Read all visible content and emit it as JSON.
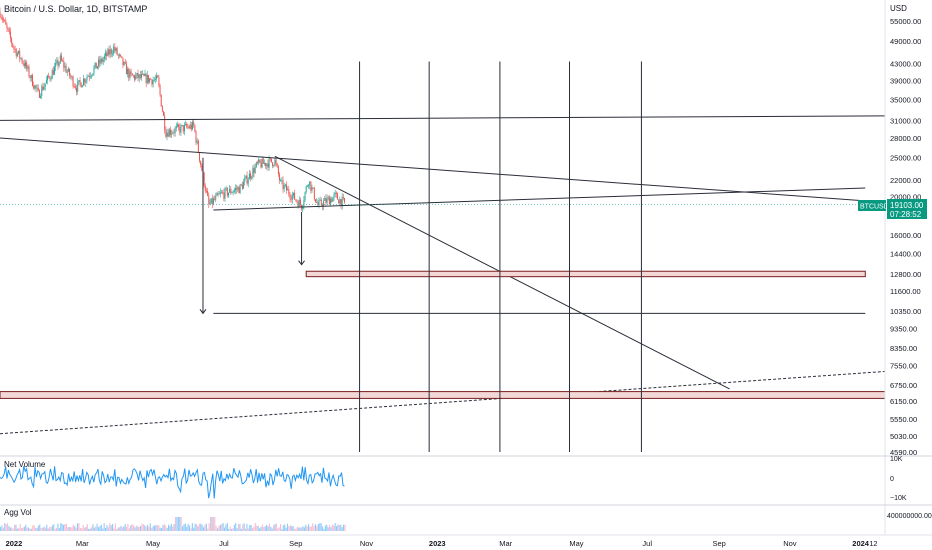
{
  "header": {
    "title": "Bitcoin / U.S. Dollar, 1D, BITSTAMP"
  },
  "price_axis": {
    "currency": "USD",
    "ticks": [
      "55000.00",
      "49000.00",
      "43000.00",
      "39000.00",
      "35000.00",
      "31000.00",
      "28000.00",
      "25000.00",
      "22000.00",
      "20000.00",
      "16000.00",
      "14400.00",
      "12800.00",
      "11600.00",
      "10350.00",
      "9350.00",
      "8350.00",
      "7550.00",
      "6750.00",
      "6150.00",
      "5550.00",
      "5030.00",
      "4590.00"
    ]
  },
  "last_price": {
    "symbol": "BTCUSD",
    "price": "19103.00",
    "countdown": "07:28:52"
  },
  "time_axis": {
    "labels": [
      "2022",
      "Mar",
      "May",
      "Jul",
      "Sep",
      "Nov",
      "2023",
      "Mar",
      "May",
      "Jul",
      "Sep",
      "Nov",
      "2024",
      "12"
    ]
  },
  "panes": {
    "net_volume": {
      "title": "Net Volume",
      "ticks": [
        "10K",
        "0",
        "−10K"
      ]
    },
    "agg_vol": {
      "title": "Agg Vol",
      "ticks": [
        "400000000.00"
      ]
    }
  },
  "colors": {
    "up": "#26a69a",
    "down": "#ef5350",
    "net_volume_line": "#2196f3",
    "last_price_badge": "#089981",
    "zone_fill": "#f3d6d6",
    "zone_border": "#7a1f1f"
  },
  "chart_data": {
    "type": "candlestick",
    "title": "Bitcoin / U.S. Dollar, 1D, BITSTAMP",
    "y_scale": "log",
    "ylim": [
      4590,
      62000
    ],
    "x_range": [
      "2021-12-20",
      "2024-01-22"
    ],
    "last_price": 19103,
    "price_path": [
      [
        "2021-12-20",
        58000
      ],
      [
        "2022-01-01",
        47000
      ],
      [
        "2022-01-10",
        43000
      ],
      [
        "2022-01-22",
        36000
      ],
      [
        "2022-02-10",
        44000
      ],
      [
        "2022-02-24",
        37500
      ],
      [
        "2022-03-28",
        47000
      ],
      [
        "2022-04-11",
        40000
      ],
      [
        "2022-05-05",
        39000
      ],
      [
        "2022-05-12",
        29000
      ],
      [
        "2022-06-05",
        30000
      ],
      [
        "2022-06-13",
        22500
      ],
      [
        "2022-06-18",
        19000
      ],
      [
        "2022-06-28",
        20200
      ],
      [
        "2022-07-15",
        21000
      ],
      [
        "2022-07-30",
        24000
      ],
      [
        "2022-08-14",
        24500
      ],
      [
        "2022-08-19",
        21500
      ],
      [
        "2022-09-06",
        19000
      ],
      [
        "2022-09-12",
        22000
      ],
      [
        "2022-09-20",
        19000
      ],
      [
        "2022-10-05",
        20000
      ],
      [
        "2022-10-14",
        19100
      ]
    ],
    "drawings": [
      {
        "kind": "trendline",
        "points": [
          [
            "2021-12-20",
            31000
          ],
          [
            "2024-01-22",
            31800
          ]
        ]
      },
      {
        "kind": "trendline",
        "points": [
          [
            "2021-12-20",
            28000
          ],
          [
            "2024-01-05",
            19500
          ]
        ]
      },
      {
        "kind": "trendline",
        "points": [
          [
            "2022-06-22",
            18500
          ],
          [
            "2024-01-05",
            21000
          ]
        ]
      },
      {
        "kind": "trendline",
        "points": [
          [
            "2022-08-14",
            25200
          ],
          [
            "2023-09-10",
            6600
          ]
        ]
      },
      {
        "kind": "dashed_trendline",
        "points": [
          [
            "2021-12-20",
            5100
          ],
          [
            "2024-01-22",
            7300
          ]
        ]
      },
      {
        "kind": "horizontal_line",
        "price": 10200,
        "from": "2022-06-22",
        "to": "2024-01-05"
      },
      {
        "kind": "arrow_down",
        "at": "2022-06-13",
        "from_price": 25000,
        "to_price": 10200
      },
      {
        "kind": "arrow_down",
        "at": "2022-09-06",
        "from_price": 18300,
        "to_price": 13500
      },
      {
        "kind": "zone",
        "from": "2022-09-10",
        "to": "2024-01-05",
        "low": 12600,
        "high": 13000
      },
      {
        "kind": "zone",
        "from": "2021-12-20",
        "to": "2024-01-22",
        "low": 6250,
        "high": 6500
      },
      {
        "kind": "vertical_lines",
        "dates": [
          "2022-10-26",
          "2022-12-25",
          "2023-02-24",
          "2023-04-25",
          "2023-06-26"
        ],
        "top_price": 43500
      }
    ]
  }
}
